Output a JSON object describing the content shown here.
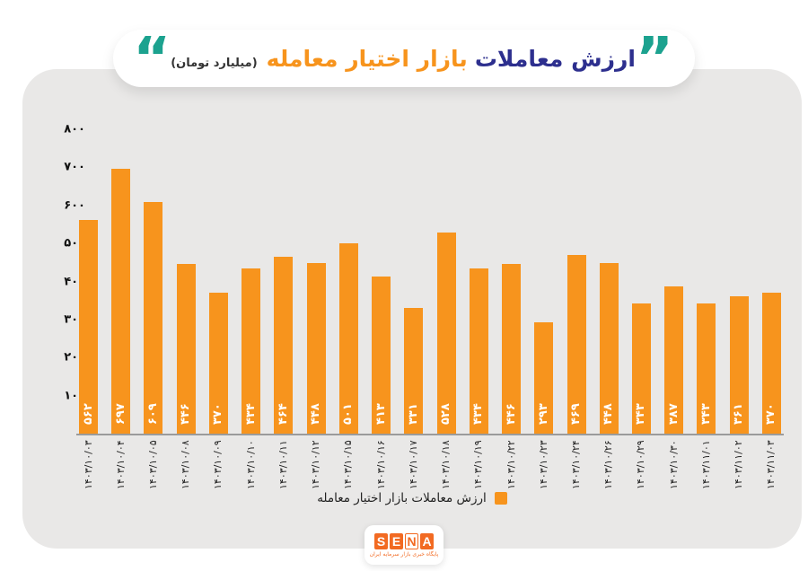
{
  "title": {
    "quote_open": "“",
    "quote_close": "”",
    "part_blue": "ارزش معاملات",
    "part_orange": "بازار اختیار معامله",
    "unit": "(میلیارد تومان)"
  },
  "legend": {
    "label": "ارزش معاملات بازار اختیار معامله"
  },
  "logo": {
    "letters": [
      "S",
      "E",
      "N",
      "A"
    ],
    "tagline": "پایگاه خبری بازار سرمایه ایران"
  },
  "colors": {
    "bar": "#F7941D",
    "title_blue": "#2D2F8E",
    "quote": "#1CA28F",
    "card": "#E9E8E7",
    "baseline": "#9B9B9B",
    "logo_orange": "#F26A22"
  },
  "chart_data": {
    "type": "bar",
    "title": "ارزش معاملات بازار اختیار معامله (میلیارد تومان)",
    "ylabel": "میلیارد تومان",
    "xlabel": "",
    "ylim": [
      0,
      800
    ],
    "y_ticks": [
      800,
      700,
      600,
      500,
      400,
      300,
      200,
      100,
      0
    ],
    "grid": false,
    "legend_position": "bottom",
    "bar_color": "#F7941D",
    "categories": [
      "۱۴۰۳/۱۰/۰۳",
      "۱۴۰۳/۱۰/۰۴",
      "۱۴۰۳/۱۰/۰۵",
      "۱۴۰۳/۱۰/۰۸",
      "۱۴۰۳/۱۰/۰۹",
      "۱۴۰۳/۱۰/۱۰",
      "۱۴۰۳/۱۰/۱۱",
      "۱۴۰۳/۱۰/۱۲",
      "۱۴۰۳/۱۰/۱۵",
      "۱۴۰۳/۱۰/۱۶",
      "۱۴۰۳/۱۰/۱۷",
      "۱۴۰۳/۱۰/۱۸",
      "۱۴۰۳/۱۰/۱۹",
      "۱۴۰۳/۱۰/۲۲",
      "۱۴۰۳/۱۰/۲۳",
      "۱۴۰۳/۱۰/۲۴",
      "۱۴۰۳/۱۰/۲۶",
      "۱۴۰۳/۱۰/۲۹",
      "۱۴۰۳/۱۰/۳۰",
      "۱۴۰۳/۱۱/۰۱",
      "۱۴۰۳/۱۱/۰۲",
      "۱۴۰۳/۱۱/۰۳"
    ],
    "values": [
      562,
      697,
      609,
      446,
      370,
      434,
      464,
      448,
      501,
      413,
      331,
      528,
      434,
      446,
      293,
      469,
      448,
      343,
      387,
      343,
      361,
      370
    ],
    "value_labels": [
      "۵۶۲",
      "۶۹۷",
      "۶۰۹",
      "۴۴۶",
      "۳۷۰",
      "۴۳۴",
      "۴۶۴",
      "۴۴۸",
      "۵۰۱",
      "۴۱۳",
      "۳۳۱",
      "۵۲۸",
      "۴۳۴",
      "۴۴۶",
      "۲۹۳",
      "۴۶۹",
      "۴۴۸",
      "۳۴۳",
      "۳۸۷",
      "۳۴۳",
      "۳۶۱",
      "۳۷۰"
    ]
  }
}
